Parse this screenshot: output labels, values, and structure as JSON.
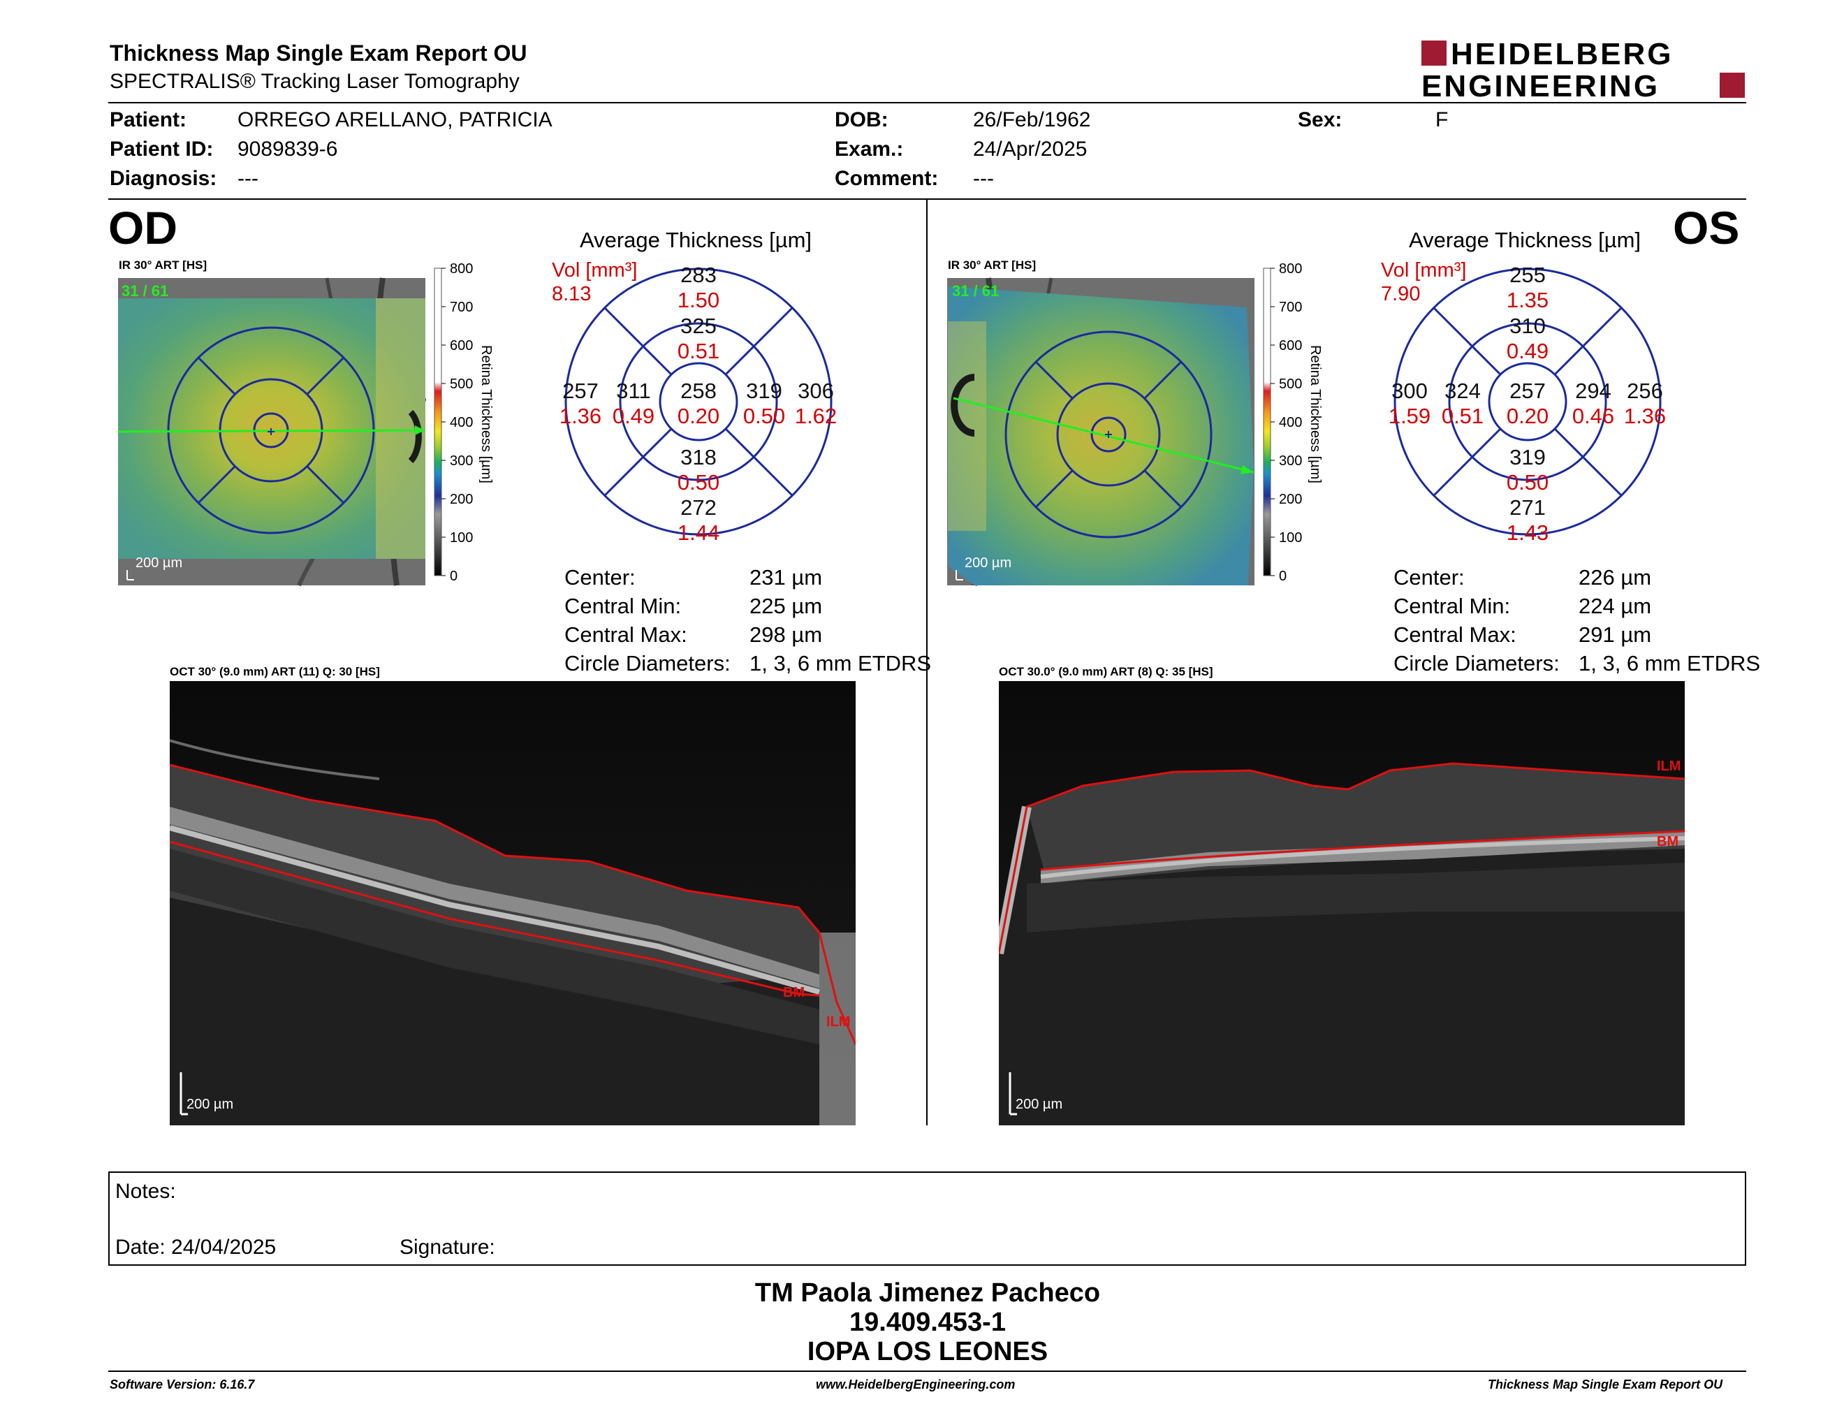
{
  "header": {
    "title": "Thickness Map Single Exam Report OU",
    "subtitle": "SPECTRALIS® Tracking Laser Tomography",
    "logo_line1": "HEIDELBERG",
    "logo_line2": "ENGINEERING",
    "brand_color": "#9e1b32"
  },
  "patient": {
    "patient_label": "Patient:",
    "patient_value": "ORREGO ARELLANO, PATRICIA",
    "id_label": "Patient ID:",
    "id_value": "9089839-6",
    "diagnosis_label": "Diagnosis:",
    "diagnosis_value": "---",
    "dob_label": "DOB:",
    "dob_value": "26/Feb/1962",
    "exam_label": "Exam.:",
    "exam_value": "24/Apr/2025",
    "comment_label": "Comment:",
    "comment_value": "---",
    "sex_label": "Sex:",
    "sex_value": "F"
  },
  "od": {
    "eye_label": "OD",
    "ir_label": "IR 30° ART [HS]",
    "fraction": "31 / 61",
    "scale_label": "200 µm",
    "colorbar_ticks": [
      "800",
      "700",
      "600",
      "500",
      "400",
      "300",
      "200",
      "100",
      "0"
    ],
    "colorbar_title": "Retina Thickness [µm]",
    "avg_title": "Average Thickness [µm]",
    "vol_label": "Vol [mm³]",
    "vol_value": "8.13",
    "sectors": {
      "outer_sup": "283",
      "outer_sup_vol": "1.50",
      "inner_sup": "325",
      "inner_sup_vol": "0.51",
      "outer_temp": "257",
      "outer_temp_vol": "1.36",
      "inner_temp": "311",
      "inner_temp_vol": "0.49",
      "center": "258",
      "center_vol": "0.20",
      "inner_nas": "319",
      "inner_nas_vol": "0.50",
      "outer_nas": "306",
      "outer_nas_vol": "1.62",
      "inner_inf": "318",
      "inner_inf_vol": "0.50",
      "outer_inf": "272",
      "outer_inf_vol": "1.44"
    },
    "stats": [
      {
        "label": "Center:",
        "value": "231 µm"
      },
      {
        "label": "Central Min:",
        "value": "225 µm"
      },
      {
        "label": "Central Max:",
        "value": "298 µm"
      },
      {
        "label": "Circle Diameters:",
        "value": "1, 3, 6 mm ETDRS"
      }
    ],
    "oct_label": "OCT 30° (9.0 mm) ART (11) Q: 30 [HS]",
    "oct_scale": "200 µm",
    "bm_label": "BM",
    "ilm_label": "ILM"
  },
  "os": {
    "eye_label": "OS",
    "ir_label": "IR 30° ART [HS]",
    "fraction": "31 / 61",
    "scale_label": "200 µm",
    "colorbar_ticks": [
      "800",
      "700",
      "600",
      "500",
      "400",
      "300",
      "200",
      "100",
      "0"
    ],
    "colorbar_title": "Retina Thickness [µm]",
    "avg_title": "Average Thickness [µm]",
    "vol_label": "Vol [mm³]",
    "vol_value": "7.90",
    "sectors": {
      "outer_sup": "255",
      "outer_sup_vol": "1.35",
      "inner_sup": "310",
      "inner_sup_vol": "0.49",
      "outer_temp": "300",
      "outer_temp_vol": "1.59",
      "inner_temp": "324",
      "inner_temp_vol": "0.51",
      "center": "257",
      "center_vol": "0.20",
      "inner_nas": "294",
      "inner_nas_vol": "0.46",
      "outer_nas": "256",
      "outer_nas_vol": "1.36",
      "inner_inf": "319",
      "inner_inf_vol": "0.50",
      "outer_inf": "271",
      "outer_inf_vol": "1.43"
    },
    "stats": [
      {
        "label": "Center:",
        "value": "226 µm"
      },
      {
        "label": "Central Min:",
        "value": "224 µm"
      },
      {
        "label": "Central Max:",
        "value": "291 µm"
      },
      {
        "label": "Circle Diameters:",
        "value": "1, 3, 6 mm ETDRS"
      }
    ],
    "oct_label": "OCT 30.0° (9.0 mm) ART (8) Q: 35 [HS]",
    "oct_scale": "200 µm",
    "bm_label": "BM",
    "ilm_label": "ILM"
  },
  "notes": {
    "notes_label": "Notes:",
    "date_label": "Date: 24/04/2025",
    "signature_label": "Signature:"
  },
  "signer": {
    "name": "TM Paola Jimenez Pacheco",
    "id": "19.409.453-1",
    "org": "IOPA LOS LEONES"
  },
  "footer": {
    "software": "Software Version: 6.16.7",
    "website": "www.HeidelbergEngineering.com",
    "report": "Thickness Map Single Exam Report OU"
  }
}
